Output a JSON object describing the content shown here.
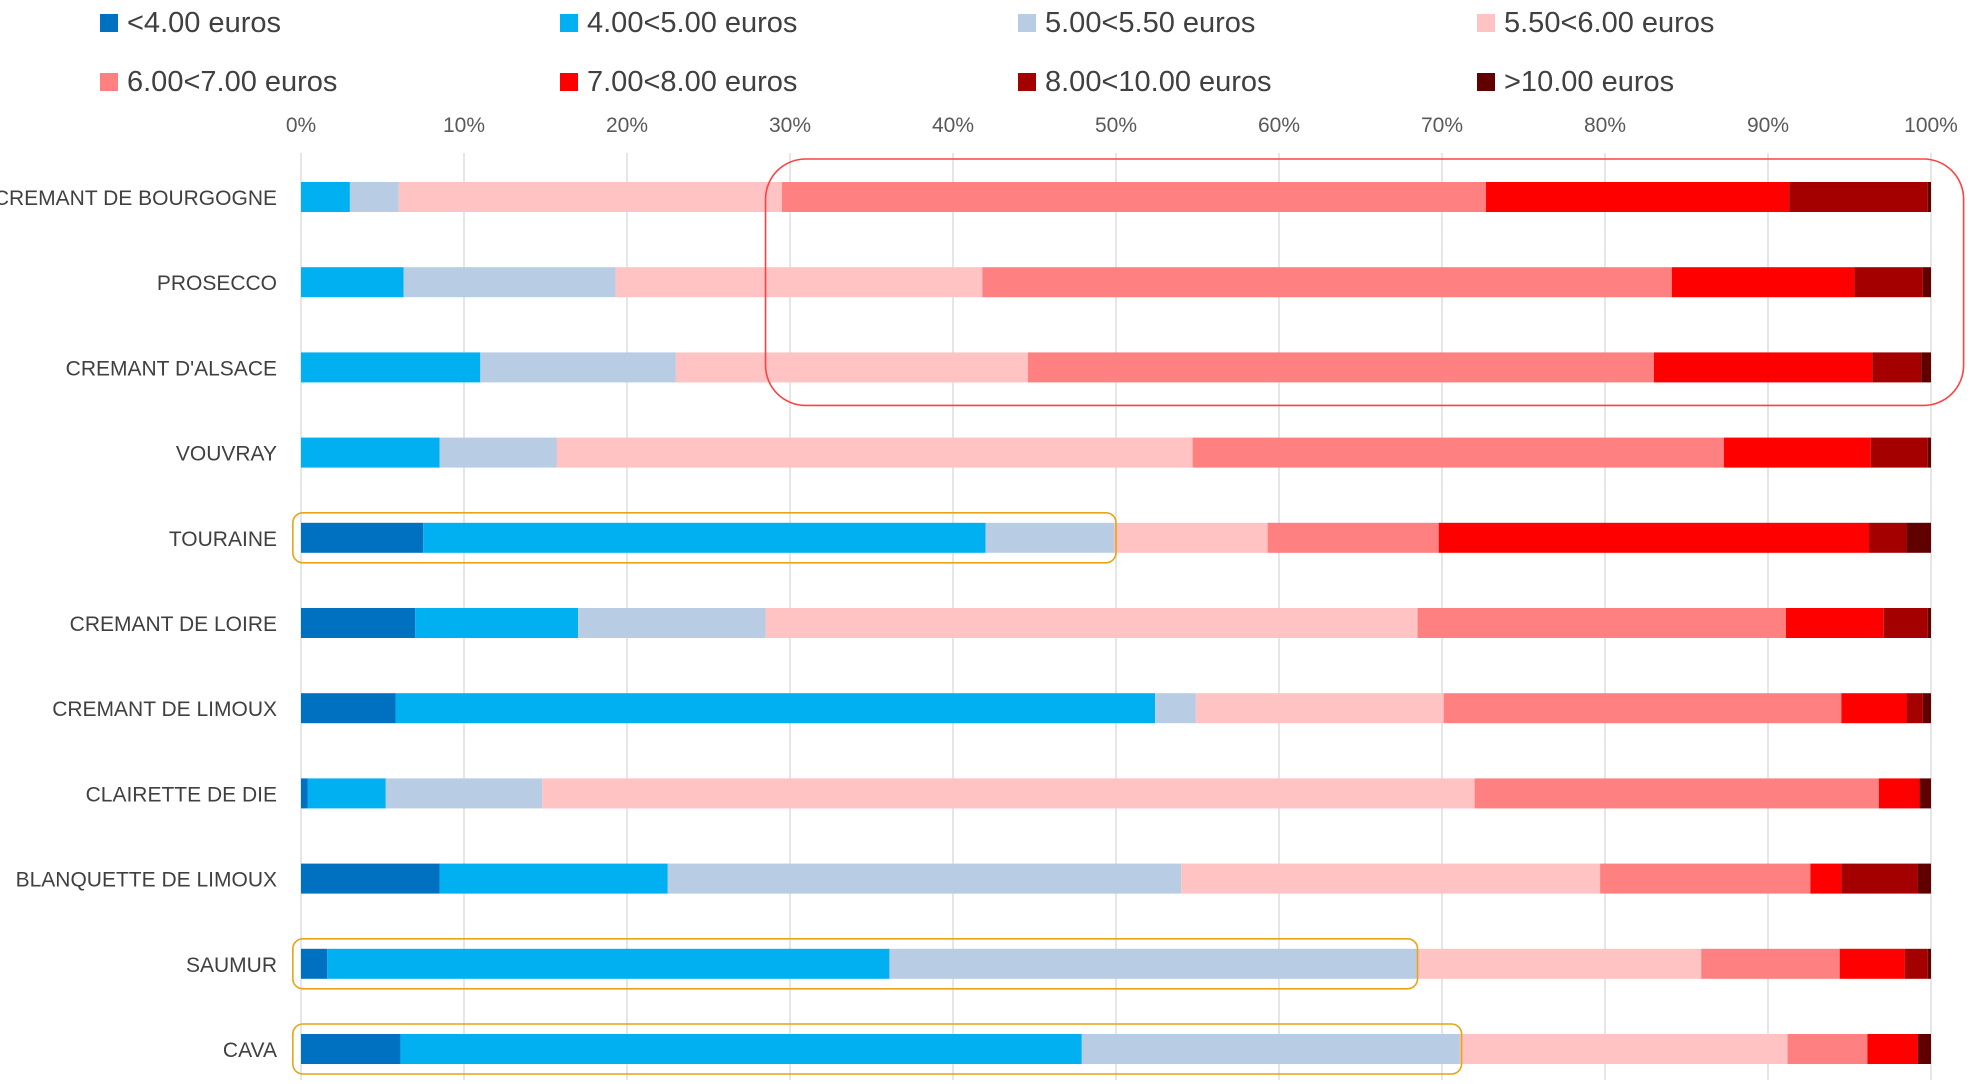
{
  "chart_data": {
    "type": "bar",
    "orientation": "horizontal",
    "stacked": true,
    "percent_scale": true,
    "title": "",
    "xlabel": "",
    "ylabel": "",
    "xlim": [
      0,
      100
    ],
    "x_ticks": [
      "0%",
      "10%",
      "20%",
      "30%",
      "40%",
      "50%",
      "60%",
      "70%",
      "80%",
      "90%",
      "100%"
    ],
    "grid": "vertical",
    "legend_position": "top",
    "categories": [
      "CREMANT DE BOURGOGNE",
      "PROSECCO",
      "CREMANT D'ALSACE",
      "VOUVRAY",
      "TOURAINE",
      "CREMANT DE LOIRE",
      "CREMANT DE LIMOUX",
      "CLAIRETTE DE DIE",
      "BLANQUETTE DE LIMOUX",
      "SAUMUR",
      "CAVA"
    ],
    "series": [
      {
        "name": "<4.00 euros",
        "color": "#0070c0",
        "values": [
          0.0,
          0.0,
          0.0,
          0.0,
          7.5,
          7.0,
          5.8,
          0.4,
          8.5,
          1.6,
          6.1
        ]
      },
      {
        "name": "4.00<5.00 euros",
        "color": "#00b0f0",
        "values": [
          3.0,
          6.3,
          11.0,
          8.5,
          34.5,
          10.0,
          46.6,
          4.8,
          14.0,
          34.5,
          41.8
        ]
      },
      {
        "name": "5.00<5.50 euros",
        "color": "#b8cce4",
        "values": [
          3.0,
          13.0,
          12.0,
          7.2,
          7.9,
          11.5,
          2.5,
          9.6,
          31.5,
          32.4,
          23.2
        ]
      },
      {
        "name": "5.50<6.00 euros",
        "color": "#ffc3c3",
        "values": [
          23.5,
          22.5,
          21.6,
          39.0,
          9.4,
          40.0,
          15.2,
          57.2,
          25.7,
          17.4,
          20.1
        ]
      },
      {
        "name": "6.00<7.00 euros",
        "color": "#ff8080",
        "values": [
          43.2,
          42.3,
          38.4,
          32.6,
          10.5,
          22.6,
          24.4,
          24.8,
          12.9,
          8.5,
          4.9
        ]
      },
      {
        "name": "7.00<8.00 euros",
        "color": "#ff0000",
        "values": [
          18.6,
          11.2,
          13.4,
          9.0,
          26.4,
          6.0,
          4.0,
          2.5,
          1.9,
          4.0,
          3.1
        ]
      },
      {
        "name": "8.00<10.00 euros",
        "color": "#a50000",
        "values": [
          8.5,
          4.2,
          3.0,
          3.5,
          2.3,
          2.7,
          1.0,
          0.0,
          4.7,
          1.4,
          0.0
        ]
      },
      {
        "name": ">10.00 euros",
        "color": "#600000",
        "values": [
          0.2,
          0.5,
          0.6,
          0.2,
          1.5,
          0.2,
          0.5,
          0.7,
          0.8,
          0.2,
          0.8
        ]
      }
    ],
    "annotations": [
      {
        "type": "rounded-rectangle",
        "color": "#ff4040",
        "rows": [
          "CREMANT DE BOURGOGNE",
          "CREMANT D'ALSACE"
        ],
        "x_range": [
          28.5,
          102
        ]
      },
      {
        "type": "rounded-rectangle",
        "color": "#e8a317",
        "rows": [
          "TOURAINE",
          "TOURAINE"
        ],
        "x_range": [
          -0.5,
          50
        ]
      },
      {
        "type": "rounded-rectangle",
        "color": "#e8a317",
        "rows": [
          "SAUMUR",
          "SAUMUR"
        ],
        "x_range": [
          -0.5,
          68.5
        ]
      },
      {
        "type": "rounded-rectangle",
        "color": "#e8a317",
        "rows": [
          "CAVA",
          "CAVA"
        ],
        "x_range": [
          -0.5,
          71.2
        ]
      }
    ]
  }
}
